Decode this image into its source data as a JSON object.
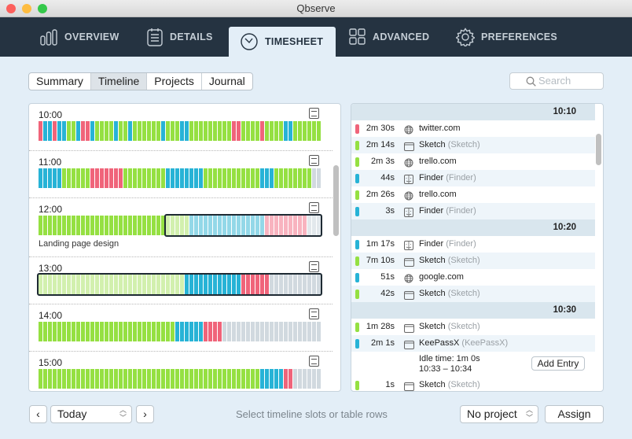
{
  "window": {
    "title": "Qbserve"
  },
  "nav": [
    {
      "label": "OVERVIEW",
      "icon": "bar-chart-icon"
    },
    {
      "label": "DETAILS",
      "icon": "document-icon"
    },
    {
      "label": "TIMESHEET",
      "icon": "clock-icon",
      "active": true
    },
    {
      "label": "ADVANCED",
      "icon": "grid-icon"
    },
    {
      "label": "PREFERENCES",
      "icon": "gear-icon"
    }
  ],
  "views": [
    {
      "label": "Summary"
    },
    {
      "label": "Timeline",
      "selected": true
    },
    {
      "label": "Projects"
    },
    {
      "label": "Journal"
    }
  ],
  "search": {
    "placeholder": "Search"
  },
  "colors": {
    "distracting": "#f0647a",
    "neutral": "#27b3d6",
    "productive": "#95e042",
    "idle": "#d1d9df"
  },
  "timeline": [
    {
      "hour": "10:00",
      "slots": "rbbrbbggbrrbggggbggbggggggbgggbbgggggggggrrggggrggggbbgggggg"
    },
    {
      "hour": "11:00",
      "slots": "bbbbbggggggrrrrrrrgggggggggbbbbbbbbggggggggggggbbbggggggggxx"
    },
    {
      "hour": "12:00",
      "slots": "gggggggggggggggggggggggggggGGGGGBBBBBBBBBBBBBBBBRRRRRRRRRXXX",
      "project": "Landing page design"
    },
    {
      "hour": "13:00",
      "slots": "GGGGGGGGGGGGGGGGGGGGGGGGGGGGGGGbbbbbbbbbbbbrrrrrrxxxxxxxxxxx"
    },
    {
      "hour": "14:00",
      "slots": "gggggggggggggggggggggggggggggbbbbbbrrrrxxxxxxxxxxxxxxxxxxxxx"
    },
    {
      "hour": "15:00",
      "slots": "gggggggggggggggggggggggggggggggggggggggggggggggbbbbbrrxxxxxx"
    }
  ],
  "entries": [
    {
      "header": "10:10"
    },
    {
      "color": "r",
      "duration": "2m 30s",
      "icon": "globe-icon",
      "name": "twitter.com"
    },
    {
      "color": "g",
      "duration": "2m 14s",
      "icon": "window-icon",
      "name": "Sketch",
      "app": "(Sketch)"
    },
    {
      "color": "g",
      "duration": "2m 3s",
      "icon": "globe-icon",
      "name": "trello.com"
    },
    {
      "color": "b",
      "duration": "44s",
      "icon": "finder-icon",
      "name": "Finder",
      "app": "(Finder)"
    },
    {
      "color": "g",
      "duration": "2m 26s",
      "icon": "globe-icon",
      "name": "trello.com"
    },
    {
      "color": "b",
      "duration": "3s",
      "icon": "finder-icon",
      "name": "Finder",
      "app": "(Finder)"
    },
    {
      "header": "10:20"
    },
    {
      "color": "b",
      "duration": "1m 17s",
      "icon": "finder-icon",
      "name": "Finder",
      "app": "(Finder)"
    },
    {
      "color": "g",
      "duration": "7m 10s",
      "icon": "window-icon",
      "name": "Sketch",
      "app": "(Sketch)"
    },
    {
      "color": "b",
      "duration": "51s",
      "icon": "globe-icon",
      "name": "google.com"
    },
    {
      "color": "g",
      "duration": "42s",
      "icon": "window-icon",
      "name": "Sketch",
      "app": "(Sketch)"
    },
    {
      "header": "10:30"
    },
    {
      "color": "g",
      "duration": "1m 28s",
      "icon": "window-icon",
      "name": "Sketch",
      "app": "(Sketch)"
    },
    {
      "color": "b",
      "duration": "2m 1s",
      "icon": "window-icon",
      "name": "KeePassX",
      "app": "(KeePassX)"
    },
    {
      "idle": "Idle time: 1m 0s",
      "range": "10:33 – 10:34",
      "button": "Add Entry"
    },
    {
      "color": "g",
      "duration": "1s",
      "icon": "window-icon",
      "name": "Sketch",
      "app": "(Sketch)"
    }
  ],
  "footer": {
    "date": "Today",
    "status": "Select timeline slots or table rows",
    "project": "No project",
    "assign": "Assign"
  }
}
